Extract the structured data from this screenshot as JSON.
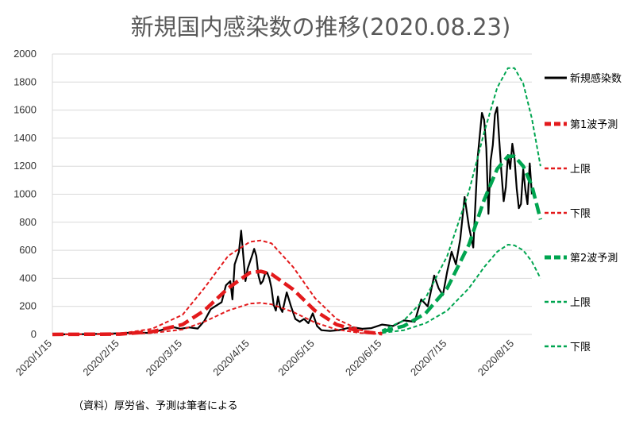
{
  "chart_data": {
    "type": "line",
    "title": "新規国内感染数の推移(2020.08.23)",
    "note": "（資料）厚労省、予測は筆者による",
    "ylim": [
      0,
      2000
    ],
    "yticks": [
      "0",
      "200",
      "400",
      "600",
      "800",
      "1000",
      "1200",
      "1400",
      "1600",
      "1800",
      "2000"
    ],
    "xrange": [
      "2020-01-15",
      "2020-08-23"
    ],
    "xtick_labels": [
      "2020/1/15",
      "2020/2/15",
      "2020/3/15",
      "2020/4/15",
      "2020/5/15",
      "2020/6/15",
      "2020/7/15",
      "2020/8/15"
    ],
    "xtick_dates": [
      "2020-01-15",
      "2020-02-15",
      "2020-03-15",
      "2020-04-15",
      "2020-05-15",
      "2020-06-15",
      "2020-07-15",
      "2020-08-15"
    ],
    "grid": "horizontal",
    "legend_position": "right",
    "series": [
      {
        "name": "新規感染数",
        "color": "#000000",
        "style": "solid",
        "width": 2.2,
        "points": [
          [
            "2020-01-15",
            0
          ],
          [
            "2020-02-01",
            2
          ],
          [
            "2020-02-15",
            8
          ],
          [
            "2020-02-22",
            14
          ],
          [
            "2020-02-29",
            10
          ],
          [
            "2020-03-05",
            30
          ],
          [
            "2020-03-10",
            55
          ],
          [
            "2020-03-14",
            40
          ],
          [
            "2020-03-18",
            50
          ],
          [
            "2020-03-22",
            42
          ],
          [
            "2020-03-25",
            95
          ],
          [
            "2020-03-28",
            180
          ],
          [
            "2020-03-31",
            210
          ],
          [
            "2020-04-02",
            230
          ],
          [
            "2020-04-04",
            350
          ],
          [
            "2020-04-06",
            380
          ],
          [
            "2020-04-07",
            250
          ],
          [
            "2020-04-08",
            500
          ],
          [
            "2020-04-10",
            590
          ],
          [
            "2020-04-11",
            740
          ],
          [
            "2020-04-12",
            560
          ],
          [
            "2020-04-13",
            380
          ],
          [
            "2020-04-14",
            470
          ],
          [
            "2020-04-16",
            560
          ],
          [
            "2020-04-17",
            610
          ],
          [
            "2020-04-18",
            560
          ],
          [
            "2020-04-19",
            420
          ],
          [
            "2020-04-20",
            360
          ],
          [
            "2020-04-21",
            380
          ],
          [
            "2020-04-22",
            430
          ],
          [
            "2020-04-23",
            440
          ],
          [
            "2020-04-24",
            400
          ],
          [
            "2020-04-25",
            330
          ],
          [
            "2020-04-26",
            210
          ],
          [
            "2020-04-27",
            170
          ],
          [
            "2020-04-28",
            270
          ],
          [
            "2020-04-29",
            190
          ],
          [
            "2020-04-30",
            160
          ],
          [
            "2020-05-02",
            300
          ],
          [
            "2020-05-04",
            200
          ],
          [
            "2020-05-06",
            110
          ],
          [
            "2020-05-08",
            90
          ],
          [
            "2020-05-10",
            110
          ],
          [
            "2020-05-12",
            80
          ],
          [
            "2020-05-14",
            150
          ],
          [
            "2020-05-16",
            60
          ],
          [
            "2020-05-18",
            30
          ],
          [
            "2020-05-22",
            25
          ],
          [
            "2020-05-26",
            30
          ],
          [
            "2020-05-30",
            45
          ],
          [
            "2020-06-02",
            50
          ],
          [
            "2020-06-06",
            40
          ],
          [
            "2020-06-10",
            45
          ],
          [
            "2020-06-15",
            70
          ],
          [
            "2020-06-20",
            60
          ],
          [
            "2020-06-25",
            100
          ],
          [
            "2020-06-30",
            90
          ],
          [
            "2020-07-03",
            250
          ],
          [
            "2020-07-06",
            200
          ],
          [
            "2020-07-09",
            420
          ],
          [
            "2020-07-11",
            330
          ],
          [
            "2020-07-13",
            280
          ],
          [
            "2020-07-15",
            450
          ],
          [
            "2020-07-17",
            590
          ],
          [
            "2020-07-19",
            500
          ],
          [
            "2020-07-21",
            680
          ],
          [
            "2020-07-23",
            980
          ],
          [
            "2020-07-25",
            770
          ],
          [
            "2020-07-27",
            620
          ],
          [
            "2020-07-29",
            1260
          ],
          [
            "2020-07-31",
            1580
          ],
          [
            "2020-08-01",
            1530
          ],
          [
            "2020-08-02",
            1330
          ],
          [
            "2020-08-03",
            860
          ],
          [
            "2020-08-04",
            1240
          ],
          [
            "2020-08-05",
            1350
          ],
          [
            "2020-08-06",
            1570
          ],
          [
            "2020-08-07",
            1620
          ],
          [
            "2020-08-08",
            1380
          ],
          [
            "2020-08-09",
            1150
          ],
          [
            "2020-08-10",
            950
          ],
          [
            "2020-08-11",
            1050
          ],
          [
            "2020-08-12",
            1280
          ],
          [
            "2020-08-13",
            1180
          ],
          [
            "2020-08-14",
            1360
          ],
          [
            "2020-08-15",
            1260
          ],
          [
            "2020-08-16",
            1040
          ],
          [
            "2020-08-17",
            900
          ],
          [
            "2020-08-18",
            930
          ],
          [
            "2020-08-19",
            1180
          ],
          [
            "2020-08-20",
            1030
          ],
          [
            "2020-08-21",
            930
          ],
          [
            "2020-08-22",
            1220
          ],
          [
            "2020-08-23",
            1000
          ]
        ]
      },
      {
        "name": "第1波予測",
        "color": "#e31a1c",
        "style": "dashed-thick",
        "width": 4.5,
        "points": [
          [
            "2020-01-15",
            0
          ],
          [
            "2020-02-15",
            2
          ],
          [
            "2020-03-01",
            20
          ],
          [
            "2020-03-15",
            70
          ],
          [
            "2020-03-25",
            170
          ],
          [
            "2020-04-05",
            330
          ],
          [
            "2020-04-15",
            440
          ],
          [
            "2020-04-20",
            450
          ],
          [
            "2020-04-25",
            430
          ],
          [
            "2020-05-05",
            320
          ],
          [
            "2020-05-15",
            170
          ],
          [
            "2020-05-25",
            70
          ],
          [
            "2020-06-05",
            20
          ],
          [
            "2020-06-15",
            5
          ]
        ]
      },
      {
        "name": "上限",
        "color": "#e31a1c",
        "style": "dashed",
        "width": 2,
        "points": [
          [
            "2020-01-15",
            0
          ],
          [
            "2020-02-15",
            5
          ],
          [
            "2020-03-01",
            40
          ],
          [
            "2020-03-15",
            140
          ],
          [
            "2020-03-25",
            330
          ],
          [
            "2020-04-05",
            560
          ],
          [
            "2020-04-15",
            660
          ],
          [
            "2020-04-20",
            670
          ],
          [
            "2020-04-25",
            650
          ],
          [
            "2020-05-05",
            480
          ],
          [
            "2020-05-15",
            260
          ],
          [
            "2020-05-25",
            110
          ],
          [
            "2020-06-05",
            30
          ],
          [
            "2020-06-15",
            8
          ]
        ]
      },
      {
        "name": "下限",
        "color": "#e31a1c",
        "style": "dashed",
        "width": 2,
        "points": [
          [
            "2020-01-15",
            0
          ],
          [
            "2020-02-15",
            1
          ],
          [
            "2020-03-01",
            10
          ],
          [
            "2020-03-15",
            35
          ],
          [
            "2020-03-25",
            90
          ],
          [
            "2020-04-05",
            170
          ],
          [
            "2020-04-15",
            220
          ],
          [
            "2020-04-20",
            225
          ],
          [
            "2020-04-25",
            215
          ],
          [
            "2020-05-05",
            160
          ],
          [
            "2020-05-15",
            85
          ],
          [
            "2020-05-25",
            35
          ],
          [
            "2020-06-05",
            10
          ],
          [
            "2020-06-15",
            2
          ]
        ]
      },
      {
        "name": "第2波予測",
        "color": "#00a550",
        "style": "dashed-thick",
        "width": 4.5,
        "points": [
          [
            "2020-06-15",
            20
          ],
          [
            "2020-06-25",
            60
          ],
          [
            "2020-07-05",
            150
          ],
          [
            "2020-07-15",
            330
          ],
          [
            "2020-07-25",
            640
          ],
          [
            "2020-08-01",
            960
          ],
          [
            "2020-08-07",
            1180
          ],
          [
            "2020-08-12",
            1270
          ],
          [
            "2020-08-15",
            1270
          ],
          [
            "2020-08-19",
            1200
          ],
          [
            "2020-08-23",
            1060
          ],
          [
            "2020-08-27",
            820
          ]
        ]
      },
      {
        "name": "上限",
        "color": "#00a550",
        "style": "dashed",
        "width": 2,
        "points": [
          [
            "2020-06-15",
            30
          ],
          [
            "2020-06-25",
            100
          ],
          [
            "2020-07-05",
            260
          ],
          [
            "2020-07-15",
            560
          ],
          [
            "2020-07-25",
            1020
          ],
          [
            "2020-08-01",
            1440
          ],
          [
            "2020-08-07",
            1760
          ],
          [
            "2020-08-12",
            1900
          ],
          [
            "2020-08-15",
            1900
          ],
          [
            "2020-08-19",
            1790
          ],
          [
            "2020-08-23",
            1540
          ],
          [
            "2020-08-27",
            1200
          ]
        ]
      },
      {
        "name": "下限",
        "color": "#00a550",
        "style": "dashed",
        "width": 2,
        "points": [
          [
            "2020-06-15",
            10
          ],
          [
            "2020-06-25",
            30
          ],
          [
            "2020-07-05",
            80
          ],
          [
            "2020-07-15",
            170
          ],
          [
            "2020-07-25",
            330
          ],
          [
            "2020-08-01",
            480
          ],
          [
            "2020-08-07",
            590
          ],
          [
            "2020-08-12",
            640
          ],
          [
            "2020-08-15",
            635
          ],
          [
            "2020-08-19",
            600
          ],
          [
            "2020-08-23",
            520
          ],
          [
            "2020-08-27",
            400
          ]
        ]
      }
    ]
  }
}
